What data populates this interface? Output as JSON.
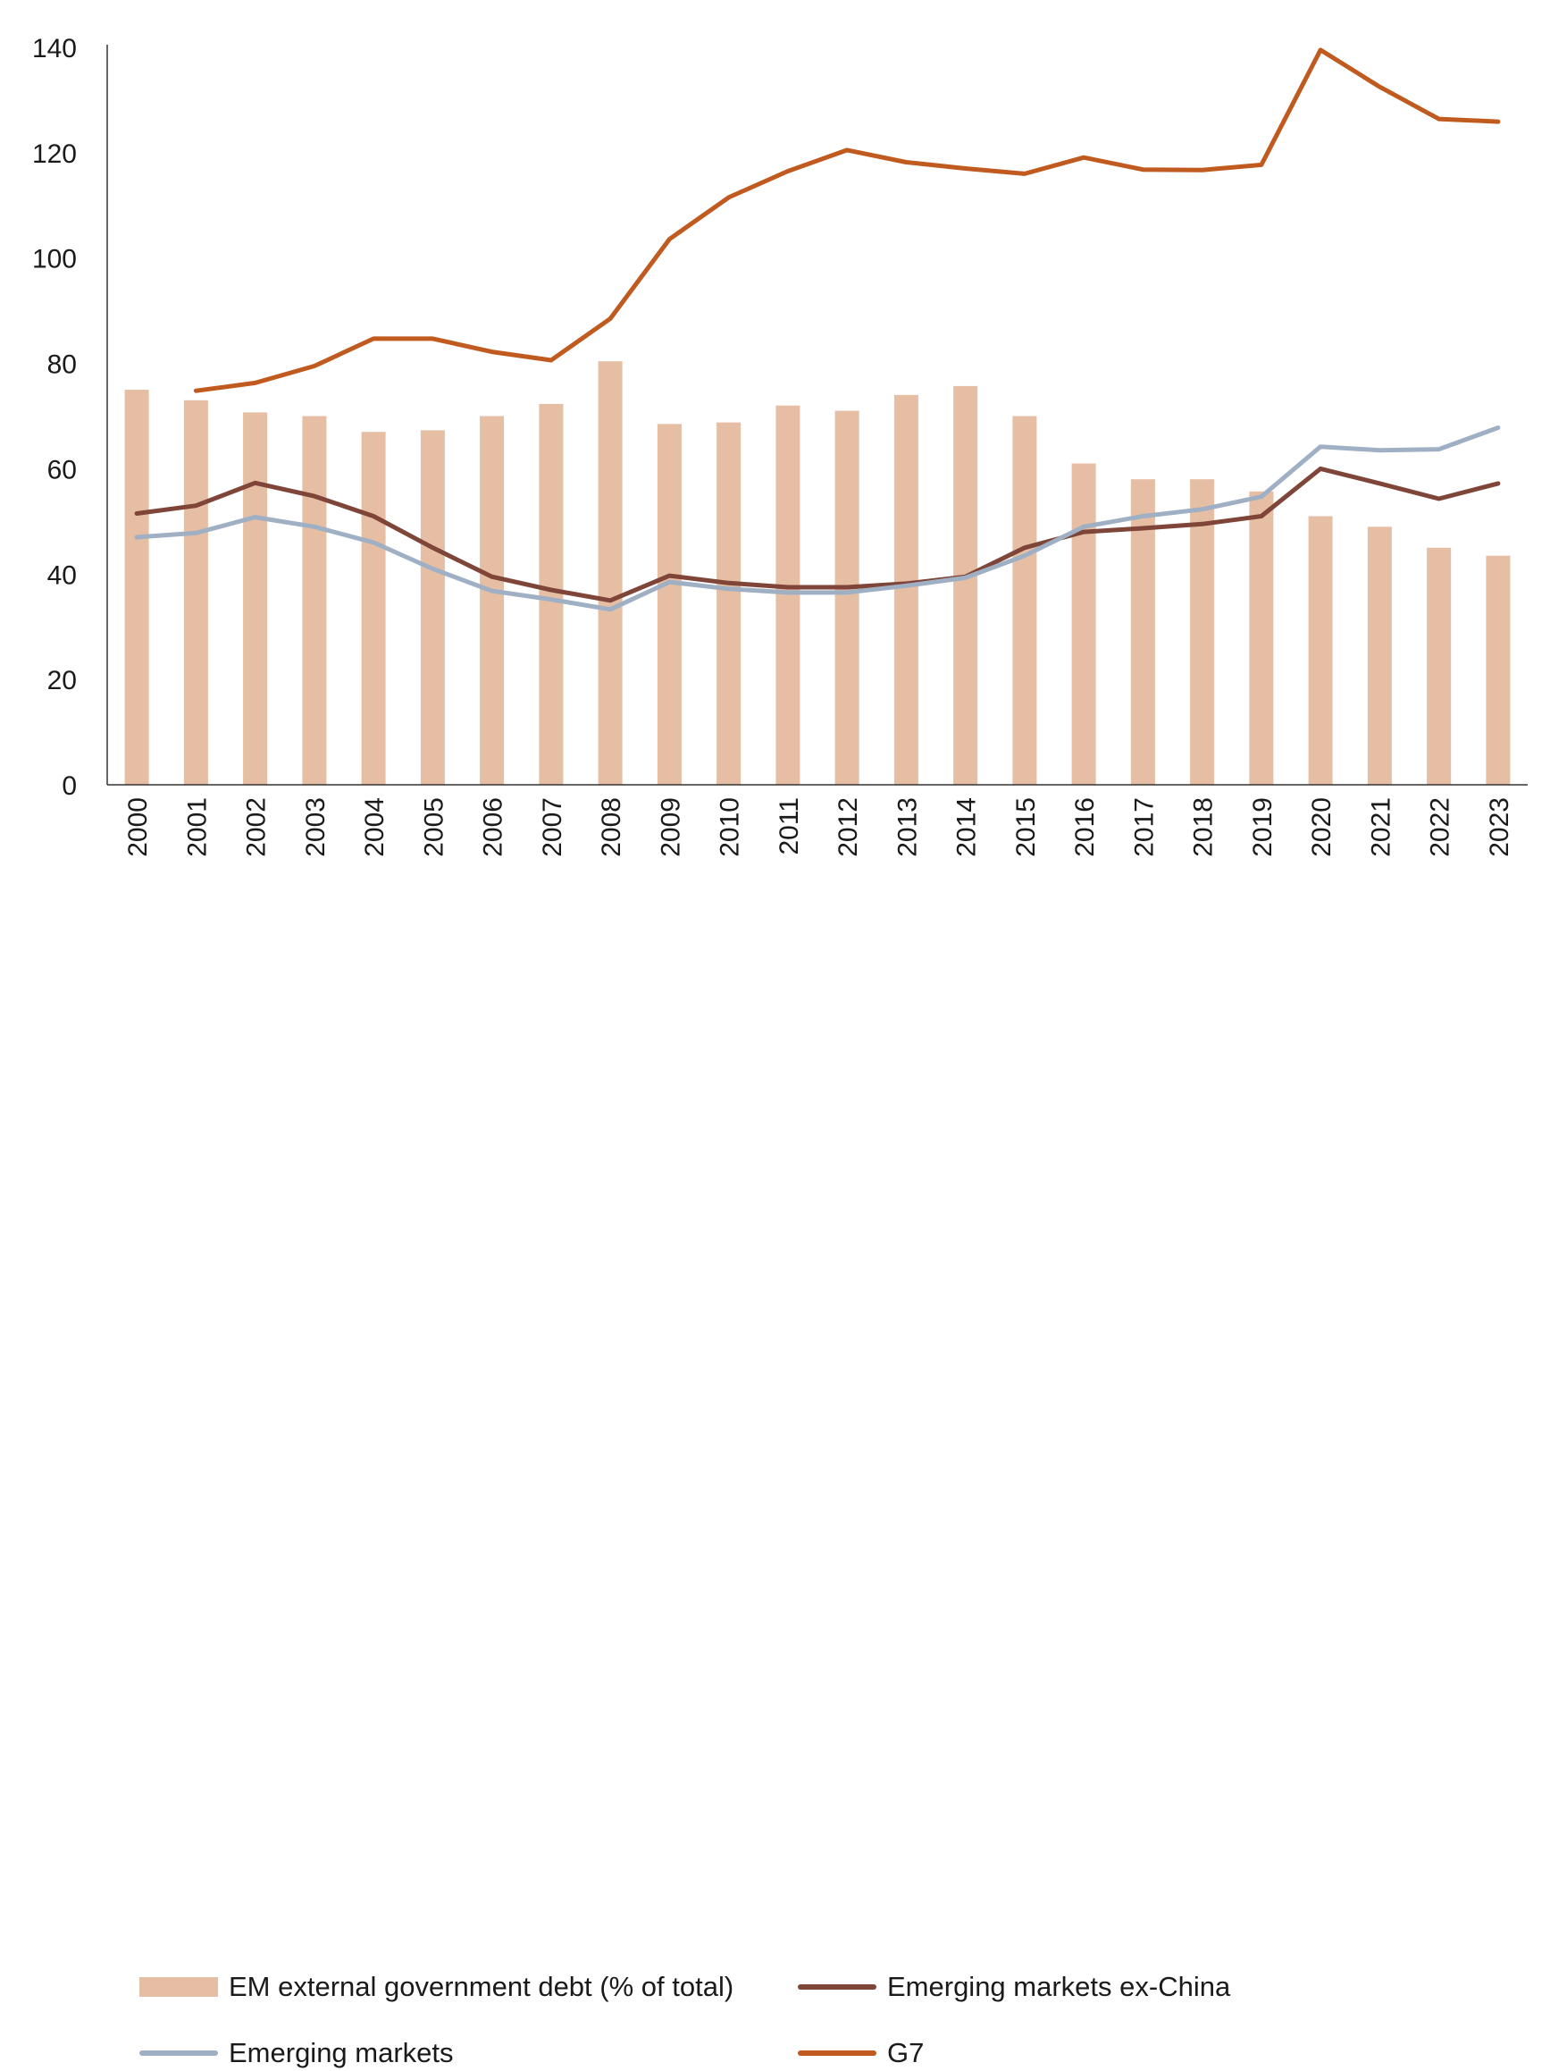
{
  "chart_data": {
    "type": "bar+line",
    "title": "",
    "xlabel": "",
    "ylabel": "",
    "ylim": [
      0,
      140
    ],
    "yticks": [
      0,
      20,
      40,
      60,
      80,
      100,
      120,
      140
    ],
    "ytick_labels": [
      "0",
      "20",
      "40",
      "60",
      "80",
      "100",
      "120",
      "140"
    ],
    "categories": [
      "2000",
      "2001",
      "2002",
      "2003",
      "2004",
      "2005",
      "2006",
      "2007",
      "2008",
      "2009",
      "2010",
      "2011",
      "2012",
      "2013",
      "2014",
      "2015",
      "2016",
      "2017",
      "2018",
      "2019",
      "2020",
      "2021",
      "2022",
      "2023"
    ],
    "grid": false,
    "legend_position": "bottom",
    "series": [
      {
        "name": "EM external government debt (% of total)",
        "kind": "bar",
        "color": "#e6bea4",
        "values": [
          75,
          73,
          70.7,
          70,
          67,
          67.3,
          70,
          72.3,
          80.4,
          68.5,
          68.8,
          72,
          71,
          74,
          75.7,
          70,
          61,
          58,
          58,
          55.7,
          51,
          49,
          45,
          43.5
        ]
      },
      {
        "name": "Emerging markets ex-China",
        "kind": "line",
        "color": "#7e4538",
        "values": [
          51.5,
          53,
          57.3,
          54.8,
          51,
          45,
          39.5,
          37,
          35,
          39.7,
          38.3,
          37.5,
          37.5,
          38.2,
          39.5,
          45,
          48,
          48.7,
          49.5,
          51,
          60,
          57.2,
          54.3,
          57.2
        ]
      },
      {
        "name": "Emerging markets",
        "kind": "line",
        "color": "#9fb0c4",
        "values": [
          47,
          47.8,
          50.8,
          49,
          46,
          41,
          36.8,
          35.2,
          33.3,
          38.5,
          37.2,
          36.5,
          36.5,
          37.8,
          39.3,
          43.5,
          49,
          51,
          52.3,
          54.7,
          64.2,
          63.5,
          63.7,
          67.8
        ]
      },
      {
        "name": "G7",
        "kind": "line",
        "color": "#c05a1f",
        "values": [
          null,
          74.8,
          76.3,
          79.5,
          84.7,
          84.7,
          82.2,
          80.6,
          88.5,
          103.6,
          111.5,
          116.5,
          120.5,
          118.2,
          117,
          116,
          119.1,
          116.8,
          116.7,
          117.7,
          139.5,
          132.5,
          126.4,
          125.9
        ]
      }
    ]
  }
}
